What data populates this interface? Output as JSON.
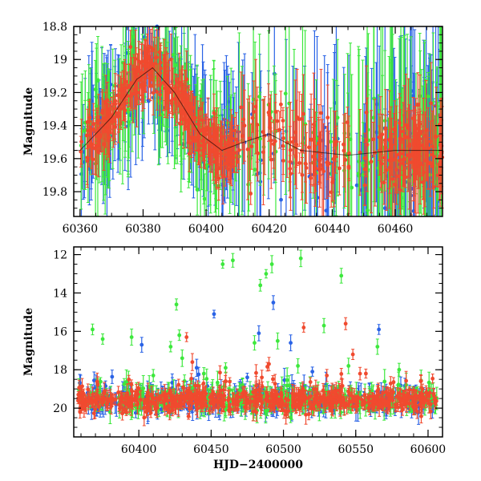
{
  "chart_data": [
    {
      "type": "scatter",
      "panel": "top",
      "xlabel": "",
      "ylabel": "Magnitude",
      "xlim": [
        60358,
        60475
      ],
      "ylim": [
        19.95,
        18.8
      ],
      "y_inverted": true,
      "x_ticks": [
        60360,
        60380,
        60400,
        60420,
        60440,
        60460
      ],
      "y_ticks": [
        18.8,
        19,
        19.2,
        19.4,
        19.6,
        19.8
      ],
      "y_tick_labels": [
        "18.8",
        "19",
        "19.2",
        "19.4",
        "19.6",
        "19.8"
      ],
      "error_bars": true,
      "series_colors": [
        "#2a63e6",
        "#3de83d",
        "#f04a2f"
      ],
      "trend_model": {
        "description": "baseline ~19.55 mag with a brightening peak ~19.05 near 60383 and a secondary bump ~19.45 near 60420",
        "points": [
          [
            60360,
            19.55
          ],
          [
            60370,
            19.35
          ],
          [
            60378,
            19.12
          ],
          [
            60383,
            19.05
          ],
          [
            60390,
            19.2
          ],
          [
            60398,
            19.45
          ],
          [
            60405,
            19.55
          ],
          [
            60412,
            19.5
          ],
          [
            60420,
            19.45
          ],
          [
            60430,
            19.55
          ],
          [
            60445,
            19.58
          ],
          [
            60460,
            19.55
          ],
          [
            60475,
            19.55
          ]
        ]
      }
    },
    {
      "type": "scatter",
      "panel": "bottom",
      "xlabel": "HJD−2400000",
      "ylabel": "Magnitude",
      "xlim": [
        60355,
        60610
      ],
      "ylim": [
        21.5,
        11.6
      ],
      "y_inverted": true,
      "x_ticks": [
        60400,
        60450,
        60500,
        60550,
        60600
      ],
      "y_ticks": [
        12,
        14,
        16,
        18,
        20
      ],
      "error_bars": true,
      "series_colors": [
        "#2a63e6",
        "#3de83d",
        "#f04a2f"
      ],
      "baseline_mag": 19.6,
      "outliers": {
        "green": [
          [
            60368,
            15.9
          ],
          [
            60375,
            16.4
          ],
          [
            60395,
            16.3
          ],
          [
            60422,
            16.8
          ],
          [
            60426,
            14.6
          ],
          [
            60428,
            16.2
          ],
          [
            60430,
            17.4
          ],
          [
            60458,
            12.5
          ],
          [
            60465,
            12.3
          ],
          [
            60480,
            16.6
          ],
          [
            60484,
            13.6
          ],
          [
            60488,
            13.0
          ],
          [
            60492,
            12.5
          ],
          [
            60496,
            16.5
          ],
          [
            60510,
            17.8
          ],
          [
            60512,
            12.2
          ],
          [
            60528,
            15.7
          ],
          [
            60540,
            13.1
          ],
          [
            60545,
            17.8
          ],
          [
            60565,
            16.8
          ],
          [
            60410,
            18.3
          ],
          [
            60445,
            18.2
          ],
          [
            60460,
            17.9
          ],
          [
            60580,
            18.0
          ]
        ],
        "blue": [
          [
            60452,
            15.1
          ],
          [
            60483,
            16.1
          ],
          [
            60493,
            14.5
          ],
          [
            60505,
            16.6
          ],
          [
            60566,
            15.9
          ],
          [
            60402,
            16.7
          ],
          [
            60440,
            17.9
          ],
          [
            60475,
            18.4
          ],
          [
            60520,
            18.1
          ]
        ],
        "red": [
          [
            60433,
            16.3
          ],
          [
            60437,
            17.6
          ],
          [
            60514,
            15.8
          ],
          [
            60543,
            15.6
          ],
          [
            60548,
            17.2
          ],
          [
            60490,
            17.7
          ],
          [
            60530,
            18.3
          ],
          [
            60557,
            18.2
          ],
          [
            60595,
            18.6
          ]
        ]
      }
    }
  ]
}
